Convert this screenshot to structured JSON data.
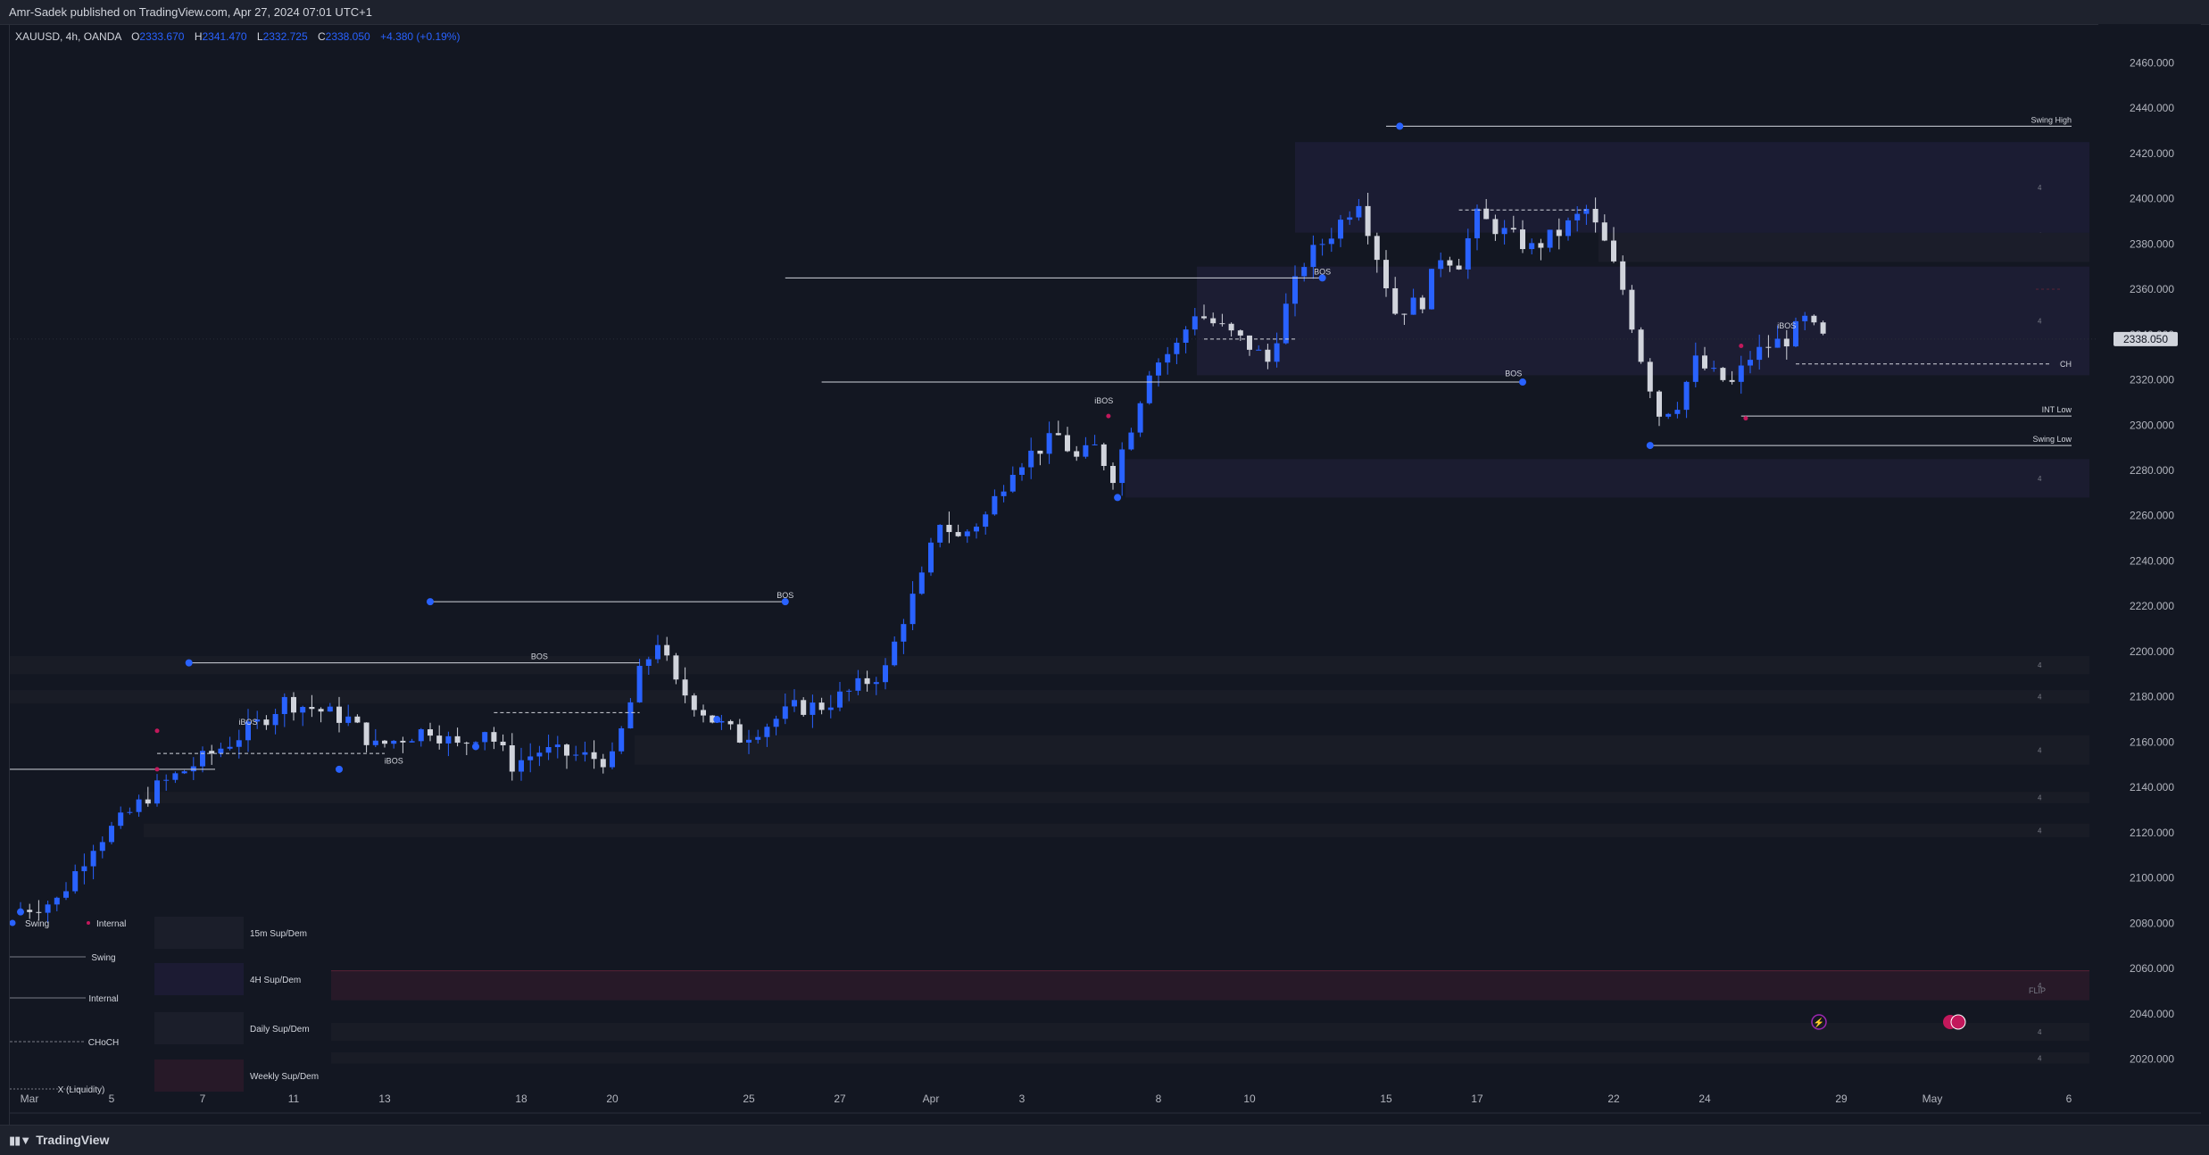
{
  "header": {
    "publisher": "Amr-Sadek published on TradingView.com, Apr 27, 2024 07:01 UTC+1"
  },
  "legend": {
    "symbol": "XAUUSD, 4h, OANDA",
    "o_label": "O",
    "o_value": "2333.670",
    "h_label": "H",
    "h_value": "2341.470",
    "l_label": "L",
    "l_value": "2332.725",
    "c_label": "C",
    "c_value": "2338.050",
    "change": "+4.380 (+0.19%)"
  },
  "footer": {
    "brand": "TradingView",
    "logo": "tradingview-logo"
  },
  "colors": {
    "background": "#131722",
    "bull_candle": "#2962ff",
    "bear_candle": "#d1d4dc",
    "swing_point": "#2962ff",
    "internal_point": "#c2185b",
    "zone_4h": "#1c1d35",
    "zone_daily": "#1b1f2b",
    "zone_weekly": "#271928",
    "text": "#d1d4dc",
    "axis_text": "#b2b5be"
  },
  "chart_data": {
    "type": "candlestick",
    "symbol": "XAUUSD",
    "timeframe": "4h",
    "x_tick_labels": [
      {
        "label": "Mar",
        "bar": 0
      },
      {
        "label": "5",
        "bar": 10
      },
      {
        "label": "7",
        "bar": 20
      },
      {
        "label": "11",
        "bar": 30
      },
      {
        "label": "13",
        "bar": 40
      },
      {
        "label": "18",
        "bar": 55
      },
      {
        "label": "20",
        "bar": 65
      },
      {
        "label": "25",
        "bar": 80
      },
      {
        "label": "27",
        "bar": 90
      },
      {
        "label": "Apr",
        "bar": 100
      },
      {
        "label": "3",
        "bar": 110
      },
      {
        "label": "8",
        "bar": 125
      },
      {
        "label": "10",
        "bar": 135
      },
      {
        "label": "15",
        "bar": 150
      },
      {
        "label": "17",
        "bar": 160
      },
      {
        "label": "22",
        "bar": 175
      },
      {
        "label": "24",
        "bar": 185
      },
      {
        "label": "29",
        "bar": 200
      },
      {
        "label": "May",
        "bar": 210
      },
      {
        "label": "6",
        "bar": 225
      }
    ],
    "y_ticks": [
      "2460.000",
      "2440.000",
      "2420.000",
      "2400.000",
      "2380.000",
      "2360.000",
      "2340.000",
      "2320.000",
      "2300.000",
      "2280.000",
      "2260.000",
      "2240.000",
      "2220.000",
      "2200.000",
      "2180.000",
      "2160.000",
      "2140.000",
      "2120.000",
      "2100.000",
      "2080.000",
      "2060.000",
      "2040.000",
      "2020.000"
    ],
    "ylim": [
      2008,
      2470
    ],
    "last_price": "2338.050",
    "close_path": [
      [
        0,
        2085
      ],
      [
        5,
        2090
      ],
      [
        9,
        2115
      ],
      [
        12,
        2125
      ],
      [
        16,
        2140
      ],
      [
        20,
        2150
      ],
      [
        24,
        2160
      ],
      [
        27,
        2168
      ],
      [
        30,
        2178
      ],
      [
        33,
        2175
      ],
      [
        37,
        2170
      ],
      [
        40,
        2158
      ],
      [
        43,
        2162
      ],
      [
        46,
        2166
      ],
      [
        49,
        2158
      ],
      [
        52,
        2166
      ],
      [
        55,
        2150
      ],
      [
        58,
        2156
      ],
      [
        62,
        2154
      ],
      [
        66,
        2152
      ],
      [
        69,
        2190
      ],
      [
        71,
        2205
      ],
      [
        73,
        2185
      ],
      [
        77,
        2170
      ],
      [
        80,
        2162
      ],
      [
        83,
        2168
      ],
      [
        86,
        2175
      ],
      [
        89,
        2176
      ],
      [
        92,
        2182
      ],
      [
        96,
        2192
      ],
      [
        98,
        2215
      ],
      [
        100,
        2232
      ],
      [
        102,
        2258
      ],
      [
        104,
        2250
      ],
      [
        107,
        2260
      ],
      [
        110,
        2282
      ],
      [
        113,
        2290
      ],
      [
        115,
        2295
      ],
      [
        117,
        2285
      ],
      [
        119,
        2290
      ],
      [
        121,
        2278
      ],
      [
        123,
        2300
      ],
      [
        125,
        2325
      ],
      [
        128,
        2335
      ],
      [
        130,
        2350
      ],
      [
        132,
        2345
      ],
      [
        134,
        2340
      ],
      [
        136,
        2335
      ],
      [
        138,
        2328
      ],
      [
        140,
        2352
      ],
      [
        142,
        2372
      ],
      [
        145,
        2385
      ],
      [
        148,
        2400
      ],
      [
        150,
        2375
      ],
      [
        152,
        2350
      ],
      [
        155,
        2355
      ],
      [
        157,
        2375
      ],
      [
        159,
        2372
      ],
      [
        161,
        2392
      ],
      [
        164,
        2385
      ],
      [
        167,
        2378
      ],
      [
        170,
        2385
      ],
      [
        173,
        2395
      ],
      [
        175,
        2380
      ],
      [
        177,
        2360
      ],
      [
        179,
        2330
      ],
      [
        181,
        2305
      ],
      [
        183,
        2310
      ],
      [
        185,
        2328
      ],
      [
        187,
        2322
      ],
      [
        189,
        2318
      ],
      [
        191,
        2330
      ],
      [
        193,
        2335
      ],
      [
        195,
        2338
      ],
      [
        197,
        2346
      ],
      [
        199,
        2338
      ]
    ],
    "swing_high": {
      "label": "Swing High",
      "price": 2432
    },
    "swing_low": {
      "label": "Swing Low",
      "price": 2291
    },
    "int_low": {
      "label": "INT Low",
      "price": 2304
    },
    "ch_level": {
      "label": "CH",
      "price": 2327
    },
    "structure_labels": [
      {
        "text": "BOS",
        "bar": 57,
        "price": 2195
      },
      {
        "text": "BOS",
        "bar": 84,
        "price": 2222
      },
      {
        "text": "BOS",
        "bar": 143,
        "price": 2365
      },
      {
        "text": "BOS",
        "bar": 164,
        "price": 2320
      },
      {
        "text": "iBOS",
        "bar": 25,
        "price": 2166
      },
      {
        "text": "iBOS",
        "bar": 41,
        "price": 2149
      },
      {
        "text": "iBOS",
        "bar": 119,
        "price": 2308
      },
      {
        "text": "iBOS",
        "bar": 194,
        "price": 2341
      }
    ],
    "flip_label": "FLIP",
    "zone_marker": "4",
    "key": {
      "swing_dot": "Swing",
      "internal_dot": "Internal",
      "lines": [
        "Swing",
        "Internal",
        "CHoCH",
        "X (Liquidity)"
      ],
      "zones": [
        "15m Sup/Dem",
        "4H Sup/Dem",
        "Daily Sup/Dem",
        "Weekly Sup/Dem"
      ]
    },
    "events_icons": [
      "lightning-icon",
      "us-flag-icon"
    ],
    "grid": false
  }
}
